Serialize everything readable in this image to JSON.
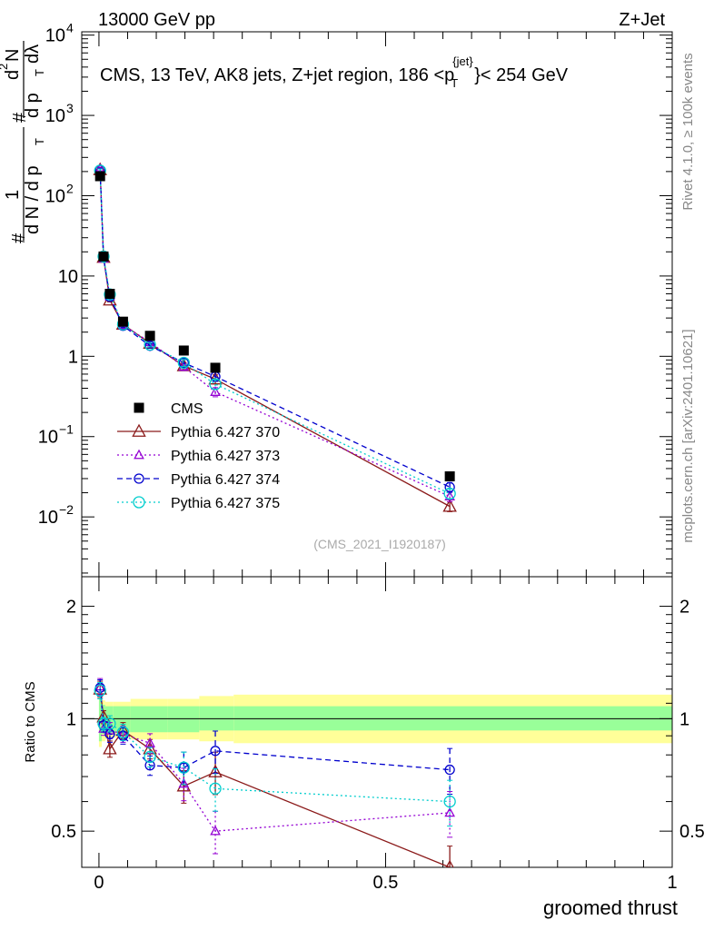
{
  "header": {
    "left": "13000 GeV pp",
    "right": "Z+Jet"
  },
  "side_labels": {
    "rivet": "Rivet 4.1.0, ≥ 100k events",
    "mcplots": "mcplots.cern.ch [arXiv:2401.10621]"
  },
  "chart_data": [
    {
      "type": "scatter",
      "panel": "main",
      "title_parts": [
        "CMS, 13 TeV, AK8 jets, Z+jet region, 186 <p",
        "{jet}",
        "T",
        "}< 254 GeV"
      ],
      "watermark": "(CMS_2021_I1920187)",
      "ylabel_parts": [
        "#",
        "1",
        "d N / d p",
        "T",
        "#",
        "d",
        "2",
        "N",
        "d p",
        "T",
        "dλ"
      ],
      "yscale": "log",
      "xlim": [
        -0.03,
        1.0
      ],
      "ylim": [
        0.0018,
        11000
      ],
      "y_ticks": [
        {
          "value": 0.01,
          "base": "10",
          "exp": "−2"
        },
        {
          "value": 0.1,
          "base": "10",
          "exp": "−1"
        },
        {
          "value": 1,
          "base": "1",
          "exp": ""
        },
        {
          "value": 10,
          "base": "10",
          "exp": ""
        },
        {
          "value": 100,
          "base": "10",
          "exp": "2"
        },
        {
          "value": 1000,
          "base": "10",
          "exp": "3"
        },
        {
          "value": 10000,
          "base": "10",
          "exp": "4"
        }
      ],
      "x": [
        0.002,
        0.008,
        0.019,
        0.042,
        0.089,
        0.148,
        0.203,
        0.612
      ],
      "series": [
        {
          "name": "CMS",
          "style": "square",
          "color": "#000000",
          "values": [
            175,
            17.5,
            6.0,
            2.7,
            1.8,
            1.18,
            0.72,
            0.032
          ]
        },
        {
          "name": "Pythia 6.427 370",
          "style": "triangle-solid",
          "color": "#8b1a1a",
          "values": [
            210,
            17.0,
            5.0,
            2.5,
            1.45,
            0.76,
            0.52,
            0.0135
          ]
        },
        {
          "name": "Pythia 6.427 373",
          "style": "triangle-dotted",
          "color": "#9400d3",
          "values": [
            215,
            16.5,
            5.6,
            2.45,
            1.5,
            0.74,
            0.36,
            0.018
          ]
        },
        {
          "name": "Pythia 6.427 374",
          "style": "circle-dashed",
          "color": "#0000cd",
          "values": [
            210,
            17.0,
            5.5,
            2.4,
            1.35,
            0.83,
            0.56,
            0.0235
          ]
        },
        {
          "name": "Pythia 6.427 375",
          "style": "circle-dotted",
          "color": "#00cdcd",
          "values": [
            205,
            17.5,
            5.9,
            2.5,
            1.4,
            0.83,
            0.45,
            0.0195
          ]
        }
      ]
    },
    {
      "type": "scatter",
      "panel": "ratio",
      "ylabel": "Ratio to CMS",
      "xlabel": "groomed thrust",
      "yscale": "log",
      "xlim": [
        -0.03,
        1.0
      ],
      "ylim": [
        0.4,
        2.4
      ],
      "y_ticks": [
        0.5,
        1,
        2
      ],
      "x_ticks": [
        0,
        0.5,
        1
      ],
      "x_tick_labels": [
        "0",
        "0.5",
        "1"
      ],
      "band_edges": [
        0,
        0.005,
        0.011,
        0.025,
        0.055,
        0.12,
        0.175,
        0.235,
        1.0
      ],
      "band_inner": [
        [
          0.87,
          1.13
        ],
        [
          0.91,
          1.09
        ],
        [
          0.92,
          1.08
        ],
        [
          0.92,
          1.08
        ],
        [
          0.92,
          1.08
        ],
        [
          0.92,
          1.08
        ],
        [
          0.93,
          1.08
        ],
        [
          0.93,
          1.08
        ]
      ],
      "band_outer": [
        [
          0.84,
          1.16
        ],
        [
          0.87,
          1.12
        ],
        [
          0.88,
          1.11
        ],
        [
          0.89,
          1.11
        ],
        [
          0.88,
          1.13
        ],
        [
          0.88,
          1.13
        ],
        [
          0.87,
          1.15
        ],
        [
          0.86,
          1.16
        ]
      ],
      "x": [
        0.002,
        0.008,
        0.019,
        0.042,
        0.089,
        0.148,
        0.203,
        0.612
      ],
      "series": [
        {
          "name": "Pythia 6.427 370",
          "values": [
            1.2,
            1.01,
            0.83,
            0.93,
            0.83,
            0.66,
            0.72,
            0.4
          ]
        },
        {
          "name": "Pythia 6.427 373",
          "values": [
            1.22,
            0.94,
            0.93,
            0.91,
            0.86,
            0.67,
            0.5,
            0.56
          ]
        },
        {
          "name": "Pythia 6.427 374",
          "values": [
            1.21,
            0.96,
            0.91,
            0.9,
            0.75,
            0.74,
            0.82,
            0.73
          ]
        },
        {
          "name": "Pythia 6.427 375",
          "values": [
            1.19,
            0.97,
            0.97,
            0.92,
            0.79,
            0.74,
            0.65,
            0.6
          ]
        }
      ]
    }
  ]
}
